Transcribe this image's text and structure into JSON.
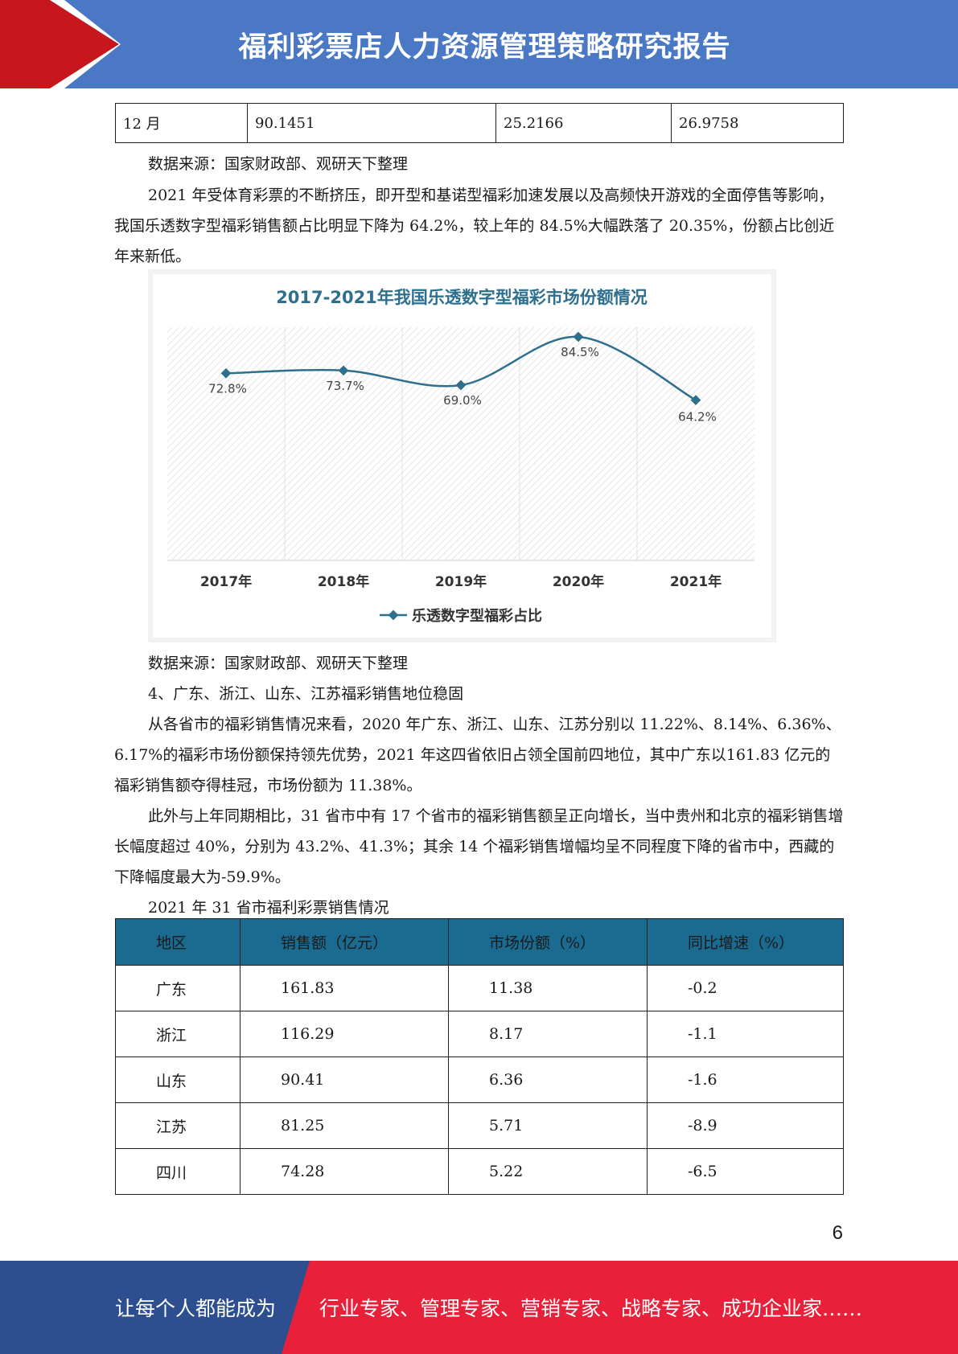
{
  "header": {
    "title": "福利彩票店人力资源管理策略研究报告"
  },
  "top_table": {
    "rows": [
      [
        "12 月",
        "90.1451",
        "25.2166",
        "26.9758"
      ]
    ]
  },
  "source_1": "数据来源：国家财政部、观研天下整理",
  "para_1": "2021 年受体育彩票的不断挤压，即开型和基诺型福彩加速发展以及高频快开游戏的全面停售等影响，我国乐透数字型福彩销售额占比明显下降为 64.2%，较上年的 84.5%大幅跌落了 20.35%，份额占比创近年来新低。",
  "chart_data": {
    "type": "line",
    "title": "2017-2021年我国乐透数字型福彩市场份额情况",
    "categories": [
      "2017年",
      "2018年",
      "2019年",
      "2020年",
      "2021年"
    ],
    "series": [
      {
        "name": "乐透数字型福彩占比",
        "values": [
          72.8,
          73.7,
          69.0,
          84.5,
          64.2
        ],
        "labels": [
          "72.8%",
          "73.7%",
          "69.0%",
          "84.5%",
          "64.2%"
        ]
      }
    ],
    "ylim": [
      0,
      90
    ],
    "grid": true,
    "legend": "bottom",
    "colors": {
      "line": "#2e6f8e",
      "title": "#2e6f8e"
    }
  },
  "source_2": "数据来源：国家财政部、观研天下整理",
  "heading_4": "4、广东、浙江、山东、江苏福彩销售地位稳固",
  "para_2": "从各省市的福彩销售情况来看，2020 年广东、浙江、山东、江苏分别以 11.22%、8.14%、6.36%、6.17%的福彩市场份额保持领先优势，2021 年这四省依旧占领全国前四地位，其中广东以161.83 亿元的福彩销售额夺得桂冠，市场份额为 11.38%。",
  "para_3": "此外与上年同期相比，31 省市中有 17 个省市的福彩销售额呈正向增长，当中贵州和北京的福彩销售增长幅度超过 40%，分别为 43.2%、41.3%；其余 14 个福彩销售增幅均呈不同程度下降的省市中，西藏的下降幅度最大为-59.9%。",
  "table_caption": "2021 年 31 省市福利彩票销售情况",
  "prov_table": {
    "headers": [
      "地区",
      "销售额（亿元）",
      "市场份额（%）",
      "同比增速（%）"
    ],
    "rows": [
      [
        "广东",
        "161.83",
        "11.38",
        "-0.2"
      ],
      [
        "浙江",
        "116.29",
        "8.17",
        "-1.1"
      ],
      [
        "山东",
        "90.41",
        "6.36",
        "-1.6"
      ],
      [
        "江苏",
        "81.25",
        "5.71",
        "-8.9"
      ],
      [
        "四川",
        "74.28",
        "5.22",
        "-6.5"
      ]
    ]
  },
  "page_number": "6",
  "footer": {
    "left": "让每个人都能成为",
    "right": "行业专家、管理专家、营销专家、战略专家、成功企业家……"
  },
  "colors": {
    "header_blue": "#4a78c4",
    "header_red": "#c8161d",
    "footer_blue": "#2e4f8f",
    "footer_red": "#e8203a",
    "table_header": "#1b6a8f"
  }
}
